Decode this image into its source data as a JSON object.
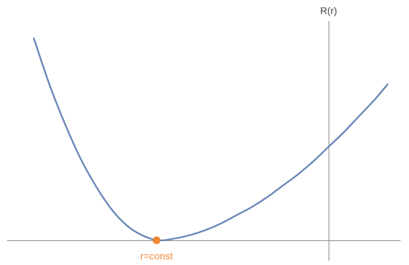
{
  "chart_data": {
    "type": "line",
    "title": "",
    "xlabel": "",
    "ylabel": "R(r)",
    "xlim": [
      -2.0,
      0.4
    ],
    "ylim": [
      0,
      1.2
    ],
    "grid": false,
    "ticks": false,
    "series": [
      {
        "color": "#6a86b8",
        "x": [
          -1.9,
          -1.8,
          -1.7,
          -1.6,
          -1.5,
          -1.4,
          -1.3,
          -1.2,
          -1.1,
          -1.0,
          -0.9,
          -0.8,
          -0.7,
          -0.6,
          -0.5,
          -0.4,
          -0.3,
          -0.2,
          -0.1,
          0.0,
          0.1,
          0.2,
          0.3,
          0.38
        ],
        "y": [
          1.23,
          0.95,
          0.71,
          0.5,
          0.33,
          0.19,
          0.09,
          0.03,
          0.0,
          0.01,
          0.03,
          0.06,
          0.1,
          0.15,
          0.2,
          0.26,
          0.33,
          0.4,
          0.48,
          0.57,
          0.66,
          0.76,
          0.86,
          0.95
        ]
      }
    ],
    "points": [
      {
        "label": "r=const",
        "x": -1.1,
        "y": 0.0,
        "color": "#f0883a"
      }
    ]
  }
}
